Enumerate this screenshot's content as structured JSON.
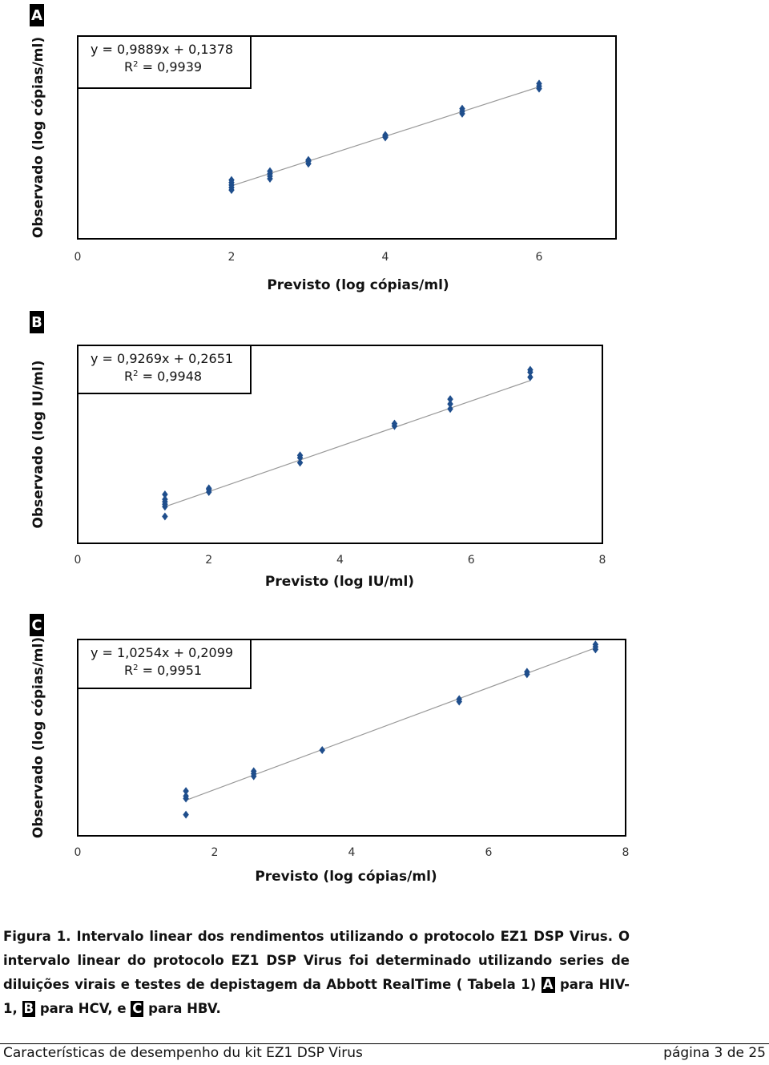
{
  "chart_data": [
    {
      "type": "scatter",
      "panel": "A",
      "equation": "y = 0,9889x + 0,1378",
      "r2": {
        "symbol": "R",
        "sup": "2",
        "text": " = 0,9939"
      },
      "fit": {
        "slope": 0.9889,
        "intercept": 0.1378
      },
      "x_label": "Previsto (log cópias/ml)",
      "y_label": "Observado (log cópias/ml)",
      "xlim": [
        0,
        7
      ],
      "xticks": [
        0,
        2,
        4,
        6
      ],
      "ylim": [
        0,
        8.1
      ],
      "color": "#1f4e8c",
      "x": [
        2,
        2,
        2,
        2,
        2,
        2.5,
        2.5,
        2.5,
        2.5,
        3,
        3,
        3,
        4,
        4,
        4,
        5,
        5,
        5,
        6,
        6,
        6
      ],
      "y": [
        1.95,
        2.05,
        2.15,
        2.25,
        2.35,
        2.4,
        2.5,
        2.6,
        2.7,
        3.0,
        3.1,
        3.15,
        4.05,
        4.1,
        4.15,
        5.0,
        5.1,
        5.2,
        6.0,
        6.1,
        6.2
      ]
    },
    {
      "type": "scatter",
      "panel": "B",
      "equation": "y = 0,9269x + 0,2651",
      "r2": {
        "symbol": "R",
        "sup": "2",
        "text": " = 0,9948"
      },
      "fit": {
        "slope": 0.9269,
        "intercept": 0.2651
      },
      "x_label": "Previsto (log IU/ml)",
      "y_label": "Observado (log IU/ml)",
      "xlim": [
        0,
        8
      ],
      "xticks": [
        0,
        2,
        4,
        6,
        8
      ],
      "ylim": [
        0,
        8.1
      ],
      "color": "#1f4e8c",
      "x": [
        1.33,
        1.33,
        1.33,
        1.33,
        1.33,
        1.33,
        2,
        2,
        2,
        3.39,
        3.39,
        3.39,
        4.83,
        4.83,
        5.68,
        5.68,
        5.68,
        6.9,
        6.9,
        6.9
      ],
      "y": [
        1.1,
        1.5,
        1.6,
        1.7,
        1.8,
        2.0,
        2.1,
        2.2,
        2.25,
        3.3,
        3.5,
        3.6,
        4.8,
        4.9,
        5.5,
        5.7,
        5.9,
        6.8,
        7.0,
        7.1
      ]
    },
    {
      "type": "scatter",
      "panel": "C",
      "equation": "y = 1,0254x + 0,2099",
      "r2": {
        "symbol": "R",
        "sup": "2",
        "text": " = 0,9951"
      },
      "fit": {
        "slope": 1.0254,
        "intercept": 0.2099
      },
      "x_label": "Previsto (log cópias/ml)",
      "y_label": "Observado (log cópias/ml)",
      "xlim": [
        0,
        8
      ],
      "xticks": [
        0,
        2,
        4,
        6,
        8
      ],
      "ylim": [
        0.4,
        8.3
      ],
      "color": "#1f4e8c",
      "x": [
        1.58,
        1.58,
        1.58,
        1.58,
        2.57,
        2.57,
        2.57,
        3.57,
        5.57,
        5.57,
        6.56,
        6.56,
        7.56,
        7.56,
        7.56
      ],
      "y": [
        1.25,
        1.9,
        2.0,
        2.2,
        2.8,
        2.9,
        3.0,
        3.85,
        5.8,
        5.9,
        6.9,
        7.0,
        7.9,
        8.0,
        8.1
      ]
    }
  ],
  "caption": {
    "lead": "Figura 1.",
    "text": " Intervalo linear dos rendimentos utilizando o protocolo EZ1 DSP Virus. O intervalo linear do protocolo EZ1 DSP Virus foi determinado utilizando series de diluições virais e testes de depistagem da Abbott RealTime ( Tabela 1) ",
    "for_a": " para HIV-1, ",
    "for_b": " para HCV, e ",
    "for_c": " para HBV."
  },
  "footer": {
    "left": "Características de desempenho du kit EZ1 DSP Virus",
    "right": "página 3 de 25"
  }
}
